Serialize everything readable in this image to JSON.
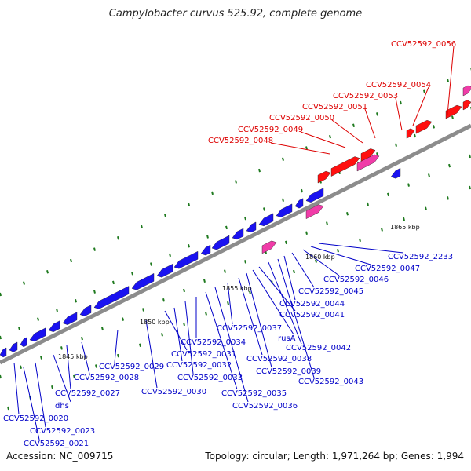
{
  "title": "Campylobacter curvus 525.92, complete genome",
  "footer": {
    "accession": "Accession: NC_009715",
    "topology": "Topology: circular; Length: 1,971,264 bp; Genes: 1,994"
  },
  "colors": {
    "forward_gene": "#ff1010",
    "reverse_gene": "#1a12f0",
    "rna_gene": "#f03ca8",
    "forward_label": "#dd0000",
    "reverse_label": "#0000c8",
    "backbone": "#8c8c8c",
    "tick": "#1f7a1f"
  },
  "scale_labels": [
    "1845 kbp",
    "1850 kbp",
    "1855 kbp",
    "1860 kbp",
    "1865 kbp"
  ],
  "forward_labels": [
    "CCV52592_0048",
    "CCV52592_0049",
    "CCV52592_0050",
    "CCV52592_0051",
    "CCV52592_0053",
    "CCV52592_0054",
    "CCV52592_0056"
  ],
  "reverse_labels": [
    "CCV52592_0020",
    "CCV52592_0021",
    "CCV52592_0023",
    "dhs",
    "CCV52592_0027",
    "CCV52592_0028",
    "CCV52592_0029",
    "CCV52592_0030",
    "CCV52592_0031",
    "CCV52592_0032",
    "CCV52592_0033",
    "CCV52592_0034",
    "CCV52592_0035",
    "CCV52592_0036",
    "CCV52592_0037",
    "CCV52592_0038",
    "CCV52592_0039",
    "rusA",
    "CCV52592_0041",
    "CCV52592_0042",
    "CCV52592_0043",
    "CCV52592_0044",
    "CCV52592_0045",
    "CCV52592_0046",
    "CCV52592_0047",
    "CCV52592_2233"
  ]
}
